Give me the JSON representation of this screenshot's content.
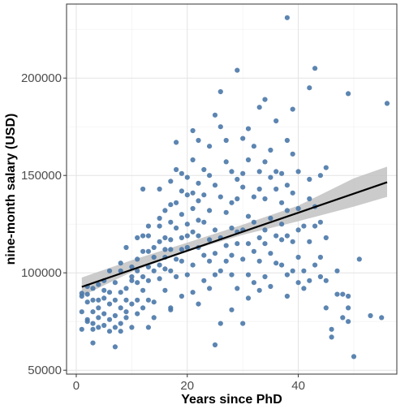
{
  "chart_data": {
    "type": "scatter",
    "title": "",
    "xlabel": "Years since PhD",
    "ylabel": "nine-month salary (USD)",
    "xlim": [
      -1.75,
      57.75
    ],
    "ylim": [
      48000,
      238000
    ],
    "x_ticks": [
      0,
      20,
      40
    ],
    "x_tick_labels": [
      "0",
      "20",
      "40"
    ],
    "y_ticks": [
      50000,
      100000,
      150000,
      200000
    ],
    "y_tick_labels": [
      "50000",
      "100000",
      "150000",
      "200000"
    ],
    "grid": true,
    "legend": "none",
    "point_color": "#4a78a8",
    "line_color": "#000000",
    "band_color": "#c2c2c2",
    "trend_line": {
      "x": [
        1,
        56
      ],
      "y": [
        92800,
        146500
      ]
    },
    "confidence_band": {
      "x": [
        1,
        10,
        20,
        30,
        40,
        50,
        56
      ],
      "lower": [
        88000,
        100500,
        111000,
        119500,
        126500,
        134000,
        139000
      ],
      "upper": [
        97600,
        106500,
        115500,
        124700,
        134500,
        148500,
        154500
      ]
    },
    "points": [
      [
        1,
        88000
      ],
      [
        1,
        71000
      ],
      [
        1,
        89500
      ],
      [
        1,
        80000
      ],
      [
        2,
        76000
      ],
      [
        2,
        89000
      ],
      [
        2,
        93000
      ],
      [
        2,
        75000
      ],
      [
        2,
        85000
      ],
      [
        3,
        64000
      ],
      [
        3,
        74000
      ],
      [
        3,
        80000
      ],
      [
        3,
        92000
      ],
      [
        3,
        86000
      ],
      [
        3,
        71000
      ],
      [
        4,
        77000
      ],
      [
        4,
        94000
      ],
      [
        4,
        86000
      ],
      [
        4,
        72000
      ],
      [
        4,
        82000
      ],
      [
        5,
        79000
      ],
      [
        5,
        87000
      ],
      [
        5,
        96000
      ],
      [
        5,
        73000
      ],
      [
        5,
        91000
      ],
      [
        6,
        76000
      ],
      [
        6,
        84000
      ],
      [
        6,
        90000
      ],
      [
        6,
        101000
      ],
      [
        6,
        70000
      ],
      [
        7,
        62000
      ],
      [
        7,
        78000
      ],
      [
        7,
        86000
      ],
      [
        7,
        95000
      ],
      [
        7,
        72000
      ],
      [
        8,
        74000
      ],
      [
        8,
        82000
      ],
      [
        8,
        90000
      ],
      [
        8,
        101000
      ],
      [
        8,
        105000
      ],
      [
        8,
        70000
      ],
      [
        9,
        92000
      ],
      [
        9,
        80000
      ],
      [
        9,
        113000
      ],
      [
        9,
        77000
      ],
      [
        9,
        86000
      ],
      [
        10,
        103000
      ],
      [
        10,
        96000
      ],
      [
        10,
        72000
      ],
      [
        10,
        84000
      ],
      [
        10,
        98000
      ],
      [
        11,
        86000
      ],
      [
        11,
        95000
      ],
      [
        11,
        107000
      ],
      [
        11,
        118000
      ],
      [
        11,
        79000
      ],
      [
        11,
        101000
      ],
      [
        12,
        111000
      ],
      [
        12,
        143000
      ],
      [
        12,
        91000
      ],
      [
        12,
        119000
      ],
      [
        12,
        82000
      ],
      [
        12,
        98000
      ],
      [
        13,
        103000
      ],
      [
        13,
        124000
      ],
      [
        13,
        96000
      ],
      [
        13,
        72000
      ],
      [
        13,
        111000
      ],
      [
        13,
        119000
      ],
      [
        13,
        86000
      ],
      [
        14,
        108000
      ],
      [
        14,
        85000
      ],
      [
        14,
        113000
      ],
      [
        14,
        101000
      ],
      [
        14,
        77000
      ],
      [
        15,
        143000
      ],
      [
        15,
        124000
      ],
      [
        15,
        104000
      ],
      [
        15,
        97000
      ],
      [
        15,
        116000
      ],
      [
        15,
        128000
      ],
      [
        16,
        118000
      ],
      [
        16,
        102000
      ],
      [
        16,
        108000
      ],
      [
        16,
        91000
      ],
      [
        16,
        132000
      ],
      [
        16,
        112000
      ],
      [
        17,
        81000
      ],
      [
        17,
        147000
      ],
      [
        17,
        135000
      ],
      [
        17,
        126000
      ],
      [
        17,
        112000
      ],
      [
        17,
        101000
      ],
      [
        17,
        82000
      ],
      [
        17,
        117000
      ],
      [
        18,
        167000
      ],
      [
        18,
        153000
      ],
      [
        18,
        136000
      ],
      [
        18,
        123000
      ],
      [
        18,
        98000
      ],
      [
        18,
        107000
      ],
      [
        19,
        151000
      ],
      [
        19,
        142000
      ],
      [
        19,
        118000
      ],
      [
        19,
        106000
      ],
      [
        19,
        88000
      ],
      [
        19,
        130000
      ],
      [
        19,
        112000
      ],
      [
        20,
        149000
      ],
      [
        20,
        140000
      ],
      [
        20,
        119000
      ],
      [
        20,
        125000
      ],
      [
        20,
        99000
      ],
      [
        20,
        113000
      ],
      [
        21,
        173000
      ],
      [
        21,
        158000
      ],
      [
        21,
        133000
      ],
      [
        21,
        141000
      ],
      [
        21,
        121000
      ],
      [
        21,
        104000
      ],
      [
        21,
        90000
      ],
      [
        22,
        168000
      ],
      [
        22,
        146000
      ],
      [
        22,
        127000
      ],
      [
        22,
        113000
      ],
      [
        22,
        84000
      ],
      [
        22,
        119000
      ],
      [
        22,
        137000
      ],
      [
        23,
        153000
      ],
      [
        23,
        140000
      ],
      [
        23,
        126000
      ],
      [
        23,
        109000
      ],
      [
        23,
        96000
      ],
      [
        24,
        165000
      ],
      [
        24,
        150000
      ],
      [
        24,
        132000
      ],
      [
        24,
        117000
      ],
      [
        24,
        106000
      ],
      [
        24,
        92000
      ],
      [
        25,
        181000
      ],
      [
        25,
        145000
      ],
      [
        25,
        122000
      ],
      [
        25,
        110000
      ],
      [
        25,
        63000
      ],
      [
        25,
        99000
      ],
      [
        26,
        193000
      ],
      [
        26,
        175000
      ],
      [
        26,
        139000
      ],
      [
        26,
        118000
      ],
      [
        26,
        74000
      ],
      [
        26,
        101000
      ],
      [
        27,
        168000
      ],
      [
        27,
        157000
      ],
      [
        27,
        131000
      ],
      [
        27,
        106000
      ],
      [
        27,
        114000
      ],
      [
        28,
        152000
      ],
      [
        28,
        136000
      ],
      [
        28,
        123000
      ],
      [
        28,
        81000
      ],
      [
        28,
        99000
      ],
      [
        28,
        109000
      ],
      [
        29,
        204000
      ],
      [
        29,
        148000
      ],
      [
        29,
        138000
      ],
      [
        29,
        115000
      ],
      [
        29,
        92000
      ],
      [
        29,
        121000
      ],
      [
        30,
        169000
      ],
      [
        30,
        151000
      ],
      [
        30,
        144000
      ],
      [
        30,
        122000
      ],
      [
        30,
        107000
      ],
      [
        30,
        74000
      ],
      [
        31,
        174000
      ],
      [
        31,
        158000
      ],
      [
        31,
        129000
      ],
      [
        31,
        115000
      ],
      [
        31,
        99000
      ],
      [
        31,
        87000
      ],
      [
        32,
        165000
      ],
      [
        32,
        139000
      ],
      [
        32,
        126000
      ],
      [
        32,
        111000
      ],
      [
        32,
        95000
      ],
      [
        33,
        185000
      ],
      [
        33,
        152000
      ],
      [
        33,
        143000
      ],
      [
        33,
        118000
      ],
      [
        33,
        106000
      ],
      [
        33,
        91000
      ],
      [
        34,
        189000
      ],
      [
        34,
        157000
      ],
      [
        34,
        138000
      ],
      [
        34,
        122000
      ],
      [
        34,
        98000
      ],
      [
        34,
        115000
      ],
      [
        35,
        163000
      ],
      [
        35,
        149000
      ],
      [
        35,
        128000
      ],
      [
        35,
        110000
      ],
      [
        35,
        93000
      ],
      [
        36,
        178000
      ],
      [
        36,
        152000
      ],
      [
        36,
        143000
      ],
      [
        36,
        119000
      ],
      [
        36,
        105000
      ],
      [
        37,
        151000
      ],
      [
        37,
        136000
      ],
      [
        37,
        125000
      ],
      [
        37,
        117000
      ],
      [
        37,
        104000
      ],
      [
        38,
        231000
      ],
      [
        38,
        168000
      ],
      [
        38,
        145000
      ],
      [
        38,
        132000
      ],
      [
        38,
        119000
      ],
      [
        38,
        99000
      ],
      [
        38,
        88000
      ],
      [
        39,
        184000
      ],
      [
        39,
        161000
      ],
      [
        39,
        141000
      ],
      [
        39,
        116000
      ],
      [
        39,
        101000
      ],
      [
        40,
        152000
      ],
      [
        40,
        133000
      ],
      [
        40,
        122000
      ],
      [
        40,
        108000
      ],
      [
        40,
        95000
      ],
      [
        41,
        124000
      ],
      [
        41,
        101000
      ],
      [
        41,
        92000
      ],
      [
        42,
        195000
      ],
      [
        42,
        148000
      ],
      [
        42,
        138000
      ],
      [
        42,
        116000
      ],
      [
        42,
        96000
      ],
      [
        43,
        205000
      ],
      [
        43,
        134000
      ],
      [
        43,
        124000
      ],
      [
        43,
        104000
      ],
      [
        44,
        150000
      ],
      [
        44,
        126000
      ],
      [
        44,
        108000
      ],
      [
        44,
        98000
      ],
      [
        45,
        154000
      ],
      [
        45,
        118000
      ],
      [
        45,
        96000
      ],
      [
        45,
        82000
      ],
      [
        46,
        71000
      ],
      [
        46,
        67000
      ],
      [
        47,
        101000
      ],
      [
        47,
        89000
      ],
      [
        48,
        89000
      ],
      [
        48,
        77000
      ],
      [
        49,
        192000
      ],
      [
        49,
        88000
      ],
      [
        49,
        82000
      ],
      [
        49,
        75000
      ],
      [
        50,
        57000
      ],
      [
        51,
        107000
      ],
      [
        53,
        78000
      ],
      [
        55,
        77000
      ],
      [
        56,
        187000
      ]
    ]
  }
}
